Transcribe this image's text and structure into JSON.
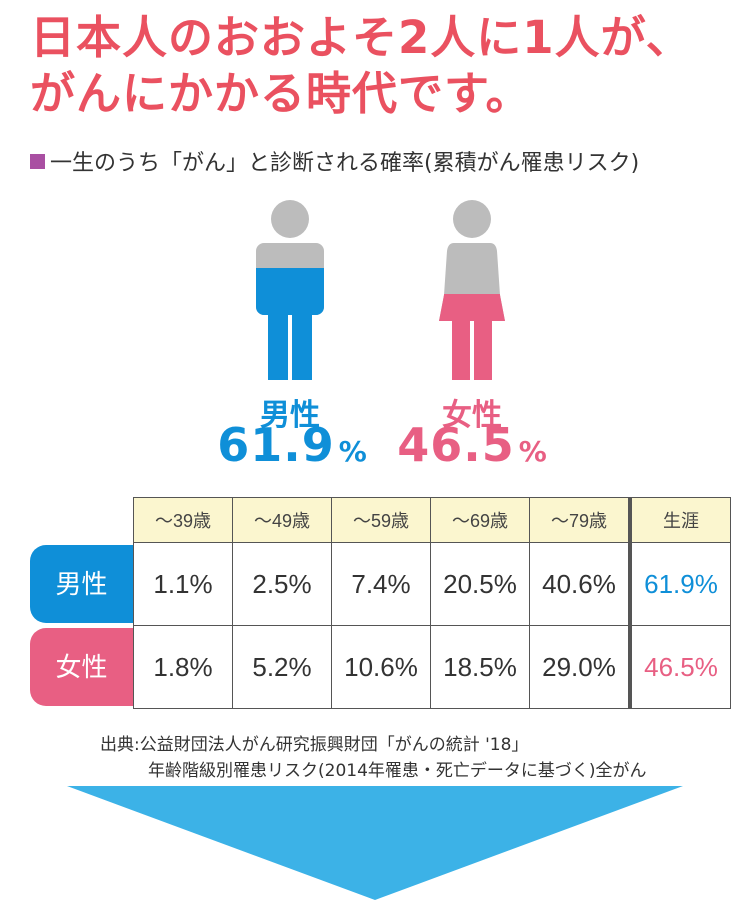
{
  "headline": {
    "line1": "日本人のおおよそ2人に1人が、",
    "line2": "がんにかかる時代です。"
  },
  "subtitle": "一生のうち「がん」と診断される確率(累積がん罹患リスク)",
  "colors": {
    "male": "#0f8fd8",
    "female": "#e85f83",
    "headline": "#ea5160",
    "figure_gray": "#bcbcbc",
    "header_bg": "#fbf6cf",
    "arrow": "#3cb2e7",
    "bullet": "#a94fa2"
  },
  "figures": {
    "male": {
      "label": "男性",
      "value": "61.9",
      "unit": "%",
      "icon": "male-person-icon"
    },
    "female": {
      "label": "女性",
      "value": "46.5",
      "unit": "%",
      "icon": "female-person-icon"
    }
  },
  "chart_data": {
    "type": "table",
    "columns": [
      "〜39歳",
      "〜49歳",
      "〜59歳",
      "〜69歳",
      "〜79歳",
      "生涯"
    ],
    "rows": [
      {
        "label": "男性",
        "values": [
          "1.1%",
          "2.5%",
          "7.4%",
          "20.5%",
          "40.6%",
          "61.9%"
        ]
      },
      {
        "label": "女性",
        "values": [
          "1.8%",
          "5.2%",
          "10.6%",
          "18.5%",
          "29.0%",
          "46.5%"
        ]
      }
    ]
  },
  "source": {
    "line1": "出典:公益財団法人がん研究振興財団「がんの統計 '18」",
    "line2": "年齢階級別罹患リスク(2014年罹患・死亡データに基づく)全がん"
  },
  "arrow_icon": "down-arrow-icon"
}
